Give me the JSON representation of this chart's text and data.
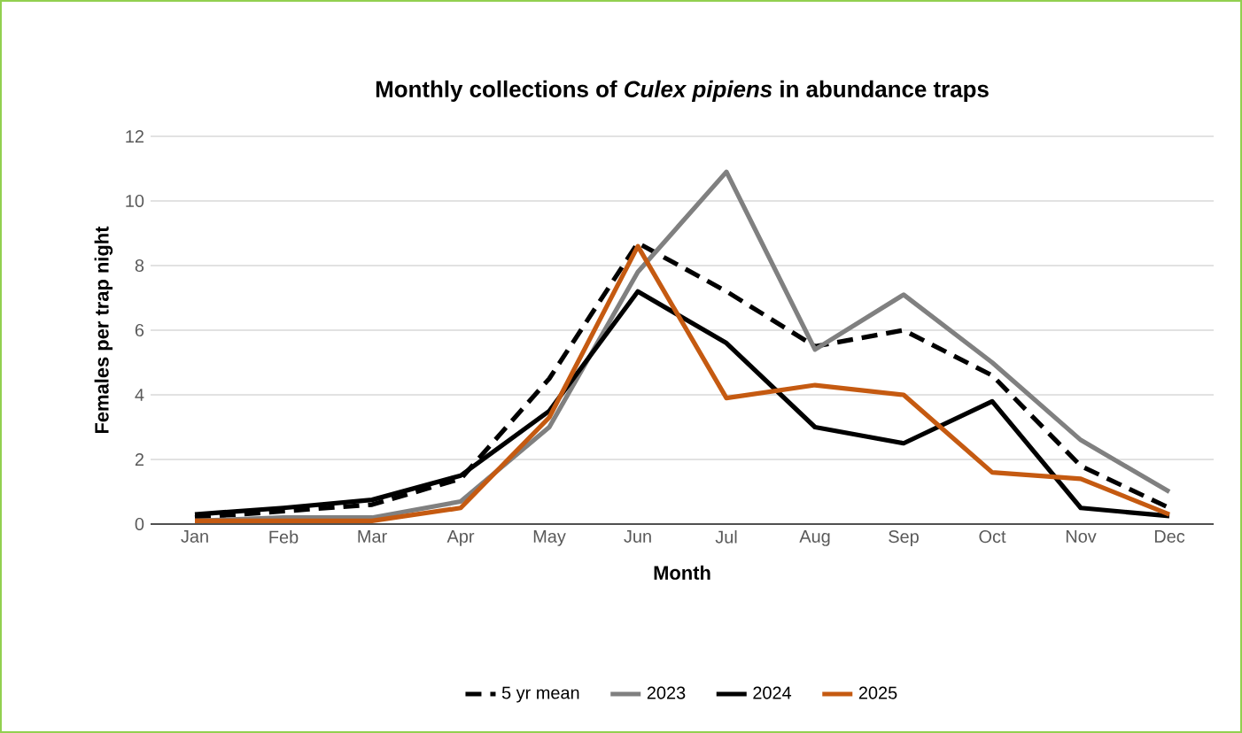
{
  "chart_data": {
    "type": "line",
    "title": "Monthly collections of *Culex pipiens* in abundance traps",
    "xlabel": "Month",
    "ylabel": "Females per trap night",
    "categories": [
      "Jan",
      "Feb",
      "Mar",
      "Apr",
      "May",
      "Jun",
      "Jul",
      "Aug",
      "Sep",
      "Oct",
      "Nov",
      "Dec"
    ],
    "series": [
      {
        "name": "5 yr mean",
        "color": "#000000",
        "line_style": "dashed",
        "values": [
          0.2,
          0.4,
          0.6,
          1.4,
          4.5,
          8.7,
          7.2,
          5.5,
          6.0,
          4.6,
          1.8,
          0.5
        ]
      },
      {
        "name": "2023",
        "color": "#808080",
        "line_style": "solid",
        "values": [
          0.1,
          0.2,
          0.2,
          0.7,
          3.0,
          7.8,
          10.9,
          5.4,
          7.1,
          5.0,
          2.6,
          1.0
        ]
      },
      {
        "name": "2024",
        "color": "#000000",
        "line_style": "solid",
        "values": [
          0.3,
          0.5,
          0.75,
          1.5,
          3.5,
          7.2,
          5.6,
          3.0,
          2.5,
          3.8,
          0.5,
          0.25
        ]
      },
      {
        "name": "2025",
        "color": "#c55a11",
        "line_style": "solid",
        "values": [
          0.1,
          0.1,
          0.1,
          0.5,
          3.3,
          8.6,
          3.9,
          4.3,
          4.0,
          1.6,
          1.4,
          0.3
        ]
      }
    ],
    "ylim": [
      0,
      12
    ],
    "yticks": [
      0,
      2,
      4,
      6,
      8,
      10,
      12
    ],
    "grid": "y",
    "legend": "bottom"
  }
}
